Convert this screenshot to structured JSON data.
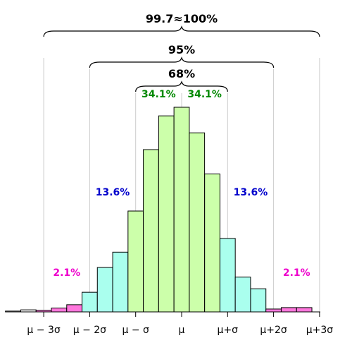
{
  "chart_data": {
    "type": "bar",
    "title": "",
    "xlabel": "",
    "ylabel": "",
    "ylim": [
      0,
      100
    ],
    "x_ticks": [
      "μ − 3σ",
      "μ − 2σ",
      "μ − σ",
      "μ",
      "μ+σ",
      "μ+2σ",
      "μ+3σ"
    ],
    "bin_width_sigma": 0.333,
    "bins": [
      {
        "x": -3.667,
        "value": 0.4,
        "band": "tail"
      },
      {
        "x": -3.333,
        "value": 1.0,
        "band": "tail"
      },
      {
        "x": -3.0,
        "value": 0.8,
        "band": "outer"
      },
      {
        "x": -2.667,
        "value": 1.9,
        "band": "outer"
      },
      {
        "x": -2.333,
        "value": 3.5,
        "band": "outer"
      },
      {
        "x": -2.0,
        "value": 9.6,
        "band": "middle"
      },
      {
        "x": -1.667,
        "value": 21.7,
        "band": "middle"
      },
      {
        "x": -1.333,
        "value": 29.2,
        "band": "middle"
      },
      {
        "x": -1.0,
        "value": 49.3,
        "band": "inner"
      },
      {
        "x": -0.667,
        "value": 79.3,
        "band": "inner"
      },
      {
        "x": -0.333,
        "value": 95.8,
        "band": "inner"
      },
      {
        "x": 0.0,
        "value": 100.0,
        "band": "inner"
      },
      {
        "x": 0.333,
        "value": 87.5,
        "band": "inner"
      },
      {
        "x": 0.667,
        "value": 67.4,
        "band": "inner"
      },
      {
        "x": 1.0,
        "value": 35.9,
        "band": "middle"
      },
      {
        "x": 1.333,
        "value": 17.0,
        "band": "middle"
      },
      {
        "x": 1.667,
        "value": 11.3,
        "band": "middle"
      },
      {
        "x": 2.0,
        "value": 1.4,
        "band": "outer"
      },
      {
        "x": 2.333,
        "value": 2.1,
        "band": "outer"
      },
      {
        "x": 2.667,
        "value": 2.1,
        "band": "outer"
      }
    ],
    "band_colors": {
      "inner": "#ccffaa",
      "middle": "#aaffee",
      "outer": "#ff77dd",
      "tail": "#ffffff"
    },
    "annotations": [
      {
        "text": "34.1%",
        "x": -0.5,
        "level": "inner-pct",
        "color": "#008800"
      },
      {
        "text": "34.1%",
        "x": 0.5,
        "level": "inner-pct",
        "color": "#008800"
      },
      {
        "text": "13.6%",
        "x": -1.5,
        "level": "middle-pct",
        "color": "#0000cc"
      },
      {
        "text": "13.6%",
        "x": 1.5,
        "level": "middle-pct",
        "color": "#0000cc"
      },
      {
        "text": "2.1%",
        "x": -2.5,
        "level": "outer-pct",
        "color": "#ee00cc"
      },
      {
        "text": "2.1%",
        "x": 2.5,
        "level": "outer-pct",
        "color": "#ee00cc"
      }
    ],
    "brackets": [
      {
        "label": "68%",
        "from": -1,
        "to": 1
      },
      {
        "label": "95%",
        "from": -2,
        "to": 2
      },
      {
        "label": "99.7≈100%",
        "from": -3,
        "to": 3
      }
    ]
  }
}
